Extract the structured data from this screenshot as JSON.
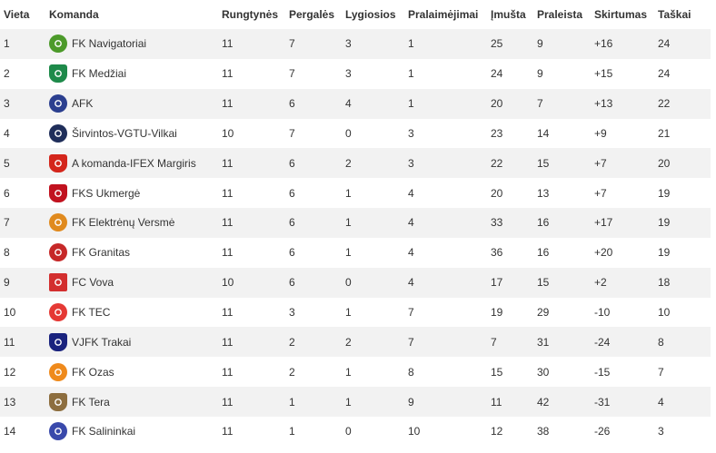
{
  "headers": {
    "place": "Vieta",
    "team": "Komanda",
    "played": "Rungtynės",
    "won": "Pergalės",
    "drawn": "Lygiosios",
    "lost": "Pralaimėjimai",
    "scored": "Įmušta",
    "conceded": "Praleista",
    "diff": "Skirtumas",
    "points": "Taškai"
  },
  "rows": [
    {
      "place": "1",
      "team": "FK Navigatoriai",
      "logo": "navigatoriai-logo-icon",
      "color": "#4c9a2a",
      "played": "11",
      "won": "7",
      "drawn": "3",
      "lost": "1",
      "scored": "25",
      "conceded": "9",
      "diff": "+16",
      "points": "24"
    },
    {
      "place": "2",
      "team": "FK Medžiai",
      "logo": "medziai-logo-icon",
      "color": "#1e8a4a",
      "played": "11",
      "won": "7",
      "drawn": "3",
      "lost": "1",
      "scored": "24",
      "conceded": "9",
      "diff": "+15",
      "points": "24"
    },
    {
      "place": "3",
      "team": "AFK",
      "logo": "afk-logo-icon",
      "color": "#2b3f8f",
      "played": "11",
      "won": "6",
      "drawn": "4",
      "lost": "1",
      "scored": "20",
      "conceded": "7",
      "diff": "+13",
      "points": "22"
    },
    {
      "place": "4",
      "team": "Širvintos-VGTU-Vilkai",
      "logo": "sirvintos-logo-icon",
      "color": "#1f2e5a",
      "played": "10",
      "won": "7",
      "drawn": "0",
      "lost": "3",
      "scored": "23",
      "conceded": "14",
      "diff": "+9",
      "points": "21"
    },
    {
      "place": "5",
      "team": "A komanda-IFEX Margiris",
      "logo": "margiris-logo-icon",
      "color": "#d4261c",
      "played": "11",
      "won": "6",
      "drawn": "2",
      "lost": "3",
      "scored": "22",
      "conceded": "15",
      "diff": "+7",
      "points": "20"
    },
    {
      "place": "6",
      "team": "FKS Ukmergė",
      "logo": "ukmerge-logo-icon",
      "color": "#c1121f",
      "played": "11",
      "won": "6",
      "drawn": "1",
      "lost": "4",
      "scored": "20",
      "conceded": "13",
      "diff": "+7",
      "points": "19"
    },
    {
      "place": "7",
      "team": "FK Elektrėnų Versmė",
      "logo": "versme-logo-icon",
      "color": "#e08a1e",
      "played": "11",
      "won": "6",
      "drawn": "1",
      "lost": "4",
      "scored": "33",
      "conceded": "16",
      "diff": "+17",
      "points": "19"
    },
    {
      "place": "8",
      "team": "FK Granitas",
      "logo": "granitas-logo-icon",
      "color": "#c62828",
      "played": "11",
      "won": "6",
      "drawn": "1",
      "lost": "4",
      "scored": "36",
      "conceded": "16",
      "diff": "+20",
      "points": "19"
    },
    {
      "place": "9",
      "team": "FC Vova",
      "logo": "vova-logo-icon",
      "color": "#d32f2f",
      "played": "10",
      "won": "6",
      "drawn": "0",
      "lost": "4",
      "scored": "17",
      "conceded": "15",
      "diff": "+2",
      "points": "18"
    },
    {
      "place": "10",
      "team": "FK TEC",
      "logo": "tec-logo-icon",
      "color": "#e53935",
      "played": "11",
      "won": "3",
      "drawn": "1",
      "lost": "7",
      "scored": "19",
      "conceded": "29",
      "diff": "-10",
      "points": "10"
    },
    {
      "place": "11",
      "team": "VJFK Trakai",
      "logo": "trakai-logo-icon",
      "color": "#1a237e",
      "played": "11",
      "won": "2",
      "drawn": "2",
      "lost": "7",
      "scored": "7",
      "conceded": "31",
      "diff": "-24",
      "points": "8"
    },
    {
      "place": "12",
      "team": "FK Ozas",
      "logo": "ozas-logo-icon",
      "color": "#ef8a1c",
      "played": "11",
      "won": "2",
      "drawn": "1",
      "lost": "8",
      "scored": "15",
      "conceded": "30",
      "diff": "-15",
      "points": "7"
    },
    {
      "place": "13",
      "team": "FK Tera",
      "logo": "tera-logo-icon",
      "color": "#8d6e3f",
      "played": "11",
      "won": "1",
      "drawn": "1",
      "lost": "9",
      "scored": "11",
      "conceded": "42",
      "diff": "-31",
      "points": "4"
    },
    {
      "place": "14",
      "team": "FK Salininkai",
      "logo": "salininkai-logo-icon",
      "color": "#3949ab",
      "played": "11",
      "won": "1",
      "drawn": "0",
      "lost": "10",
      "scored": "12",
      "conceded": "38",
      "diff": "-26",
      "points": "3"
    }
  ]
}
